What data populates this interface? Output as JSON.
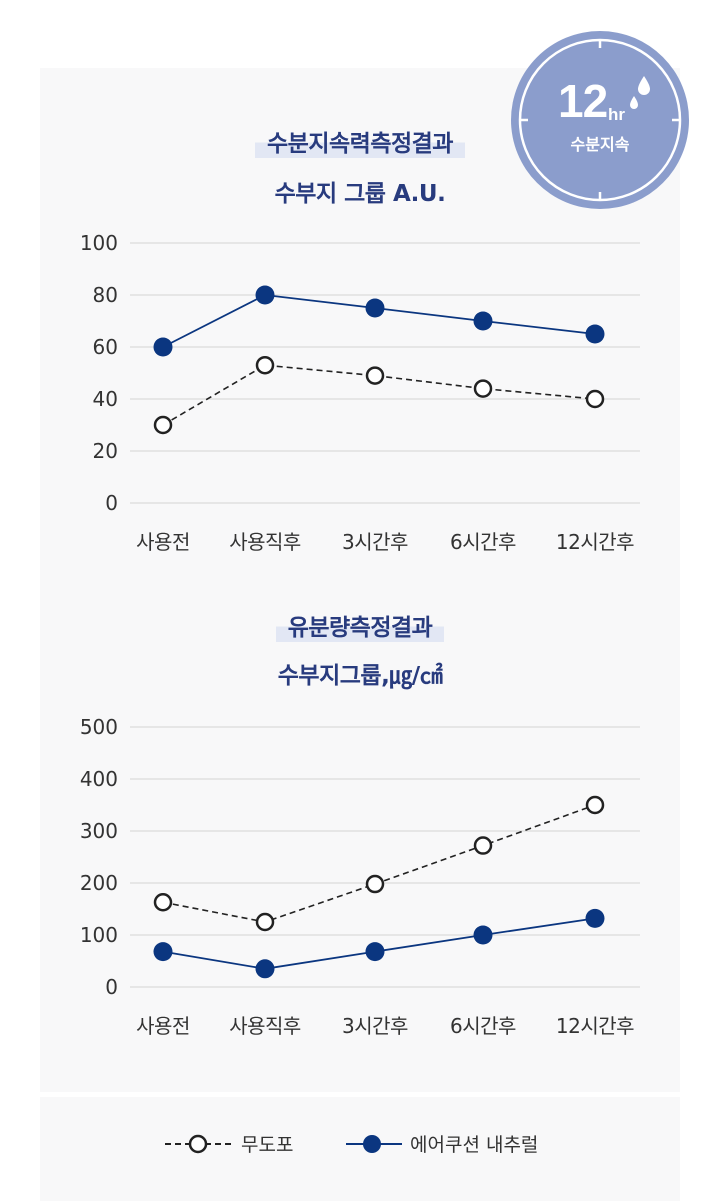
{
  "badge": {
    "hours": "12",
    "unit": "hr",
    "label": "수분지속"
  },
  "chart1": {
    "title_line1": "수분지속력측정결과",
    "title_line2": "수부지 그룹 A.U."
  },
  "chart2": {
    "title_line1": "유분량측정결과",
    "title_line2": "수부지그룹,㎍/㎠"
  },
  "legend": {
    "series1": "무도포",
    "series2": "에어쿠션 내추럴"
  },
  "colors": {
    "navy": "#0b3680",
    "title": "#283b7e",
    "badge": "#8b9dcc"
  },
  "chart_data": [
    {
      "type": "line",
      "title": "수분지속력측정결과 수부지 그룹 A.U.",
      "categories": [
        "사용전",
        "사용직후",
        "3시간후",
        "6시간후",
        "12시간후"
      ],
      "yticks": [
        "0",
        "20",
        "40",
        "60",
        "80",
        "100"
      ],
      "ylim": [
        0,
        100
      ],
      "series": [
        {
          "name": "무도포",
          "values": [
            30,
            53,
            49,
            44,
            40
          ],
          "style": "dashed-open"
        },
        {
          "name": "에어쿠션 내추럴",
          "values": [
            60,
            80,
            75,
            70,
            65
          ],
          "style": "solid-filled"
        }
      ]
    },
    {
      "type": "line",
      "title": "유분량측정결과 수부지그룹,㎍/㎠",
      "categories": [
        "사용전",
        "사용직후",
        "3시간후",
        "6시간후",
        "12시간후"
      ],
      "yticks": [
        "0",
        "100",
        "200",
        "300",
        "400",
        "500"
      ],
      "ylim": [
        0,
        500
      ],
      "series": [
        {
          "name": "무도포",
          "values": [
            163,
            125,
            198,
            272,
            350
          ],
          "style": "dashed-open"
        },
        {
          "name": "에어쿠션 내추럴",
          "values": [
            68,
            35,
            68,
            100,
            132
          ],
          "style": "solid-filled"
        }
      ]
    }
  ]
}
